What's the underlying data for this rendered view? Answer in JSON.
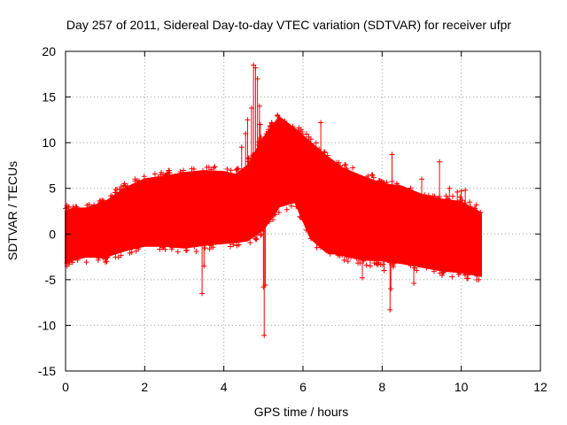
{
  "chart_data": {
    "type": "scatter",
    "title": "Day 257 of 2011, Sidereal Day-to-day VTEC variation (SDTVAR) for receiver ufpr",
    "xlabel": "GPS time / hours",
    "ylabel": "SDTVAR / TECUs",
    "xlim": [
      0,
      12
    ],
    "ylim": [
      -15,
      20
    ],
    "xticks": [
      0,
      2,
      4,
      6,
      8,
      10,
      12
    ],
    "yticks": [
      -15,
      -10,
      -5,
      0,
      5,
      10,
      15,
      20
    ],
    "grid": true,
    "marker": "+",
    "color": "#ff0000",
    "envelope": {
      "description_units": "hours vs TECU",
      "x": [
        0.0,
        0.2,
        0.5,
        1.0,
        1.5,
        2.0,
        2.5,
        3.0,
        3.5,
        4.0,
        4.3,
        4.6,
        5.0,
        5.4,
        5.8,
        6.2,
        6.6,
        7.0,
        7.5,
        8.0,
        8.5,
        9.0,
        9.5,
        10.0,
        10.5
      ],
      "upper": [
        2.5,
        2.8,
        2.8,
        3.5,
        5.0,
        6.0,
        6.3,
        6.7,
        6.9,
        6.8,
        6.5,
        7.5,
        10.5,
        12.8,
        11.5,
        10.0,
        8.5,
        7.2,
        6.3,
        5.5,
        5.2,
        4.3,
        3.8,
        3.5,
        2.3
      ],
      "lower": [
        -3.2,
        -2.8,
        -2.5,
        -2.5,
        -1.8,
        -1.3,
        -1.3,
        -1.5,
        -1.2,
        -1.0,
        -0.9,
        -0.7,
        0.5,
        3.0,
        3.5,
        -0.5,
        -2.0,
        -2.3,
        -2.8,
        -2.9,
        -3.2,
        -3.6,
        -4.0,
        -4.2,
        -4.6
      ]
    },
    "outliers": {
      "x": [
        0.1,
        3.45,
        4.55,
        4.6,
        4.7,
        4.75,
        4.8,
        4.85,
        4.9,
        4.92,
        4.95,
        5.0,
        5.02,
        5.05,
        6.45,
        6.2,
        6.35,
        7.5,
        7.7,
        8.05,
        8.2,
        8.22,
        8.25,
        8.8,
        9.0,
        9.45,
        9.7,
        9.9,
        10.0,
        10.1,
        10.3,
        10.45,
        3.5,
        4.4,
        4.45,
        5.95
      ],
      "y": [
        -3.0,
        -6.5,
        11.0,
        12.5,
        13.8,
        18.5,
        18.2,
        17.0,
        14.0,
        12.0,
        10.0,
        -5.8,
        -11.1,
        -5.6,
        12.2,
        -0.5,
        -1.5,
        -4.8,
        -3.5,
        -4.0,
        -8.3,
        -6.0,
        8.7,
        -5.4,
        6.0,
        7.9,
        5.0,
        4.6,
        4.7,
        4.8,
        2.0,
        -4.3,
        -3.5,
        4.0,
        9.5,
        1.8
      ]
    }
  }
}
